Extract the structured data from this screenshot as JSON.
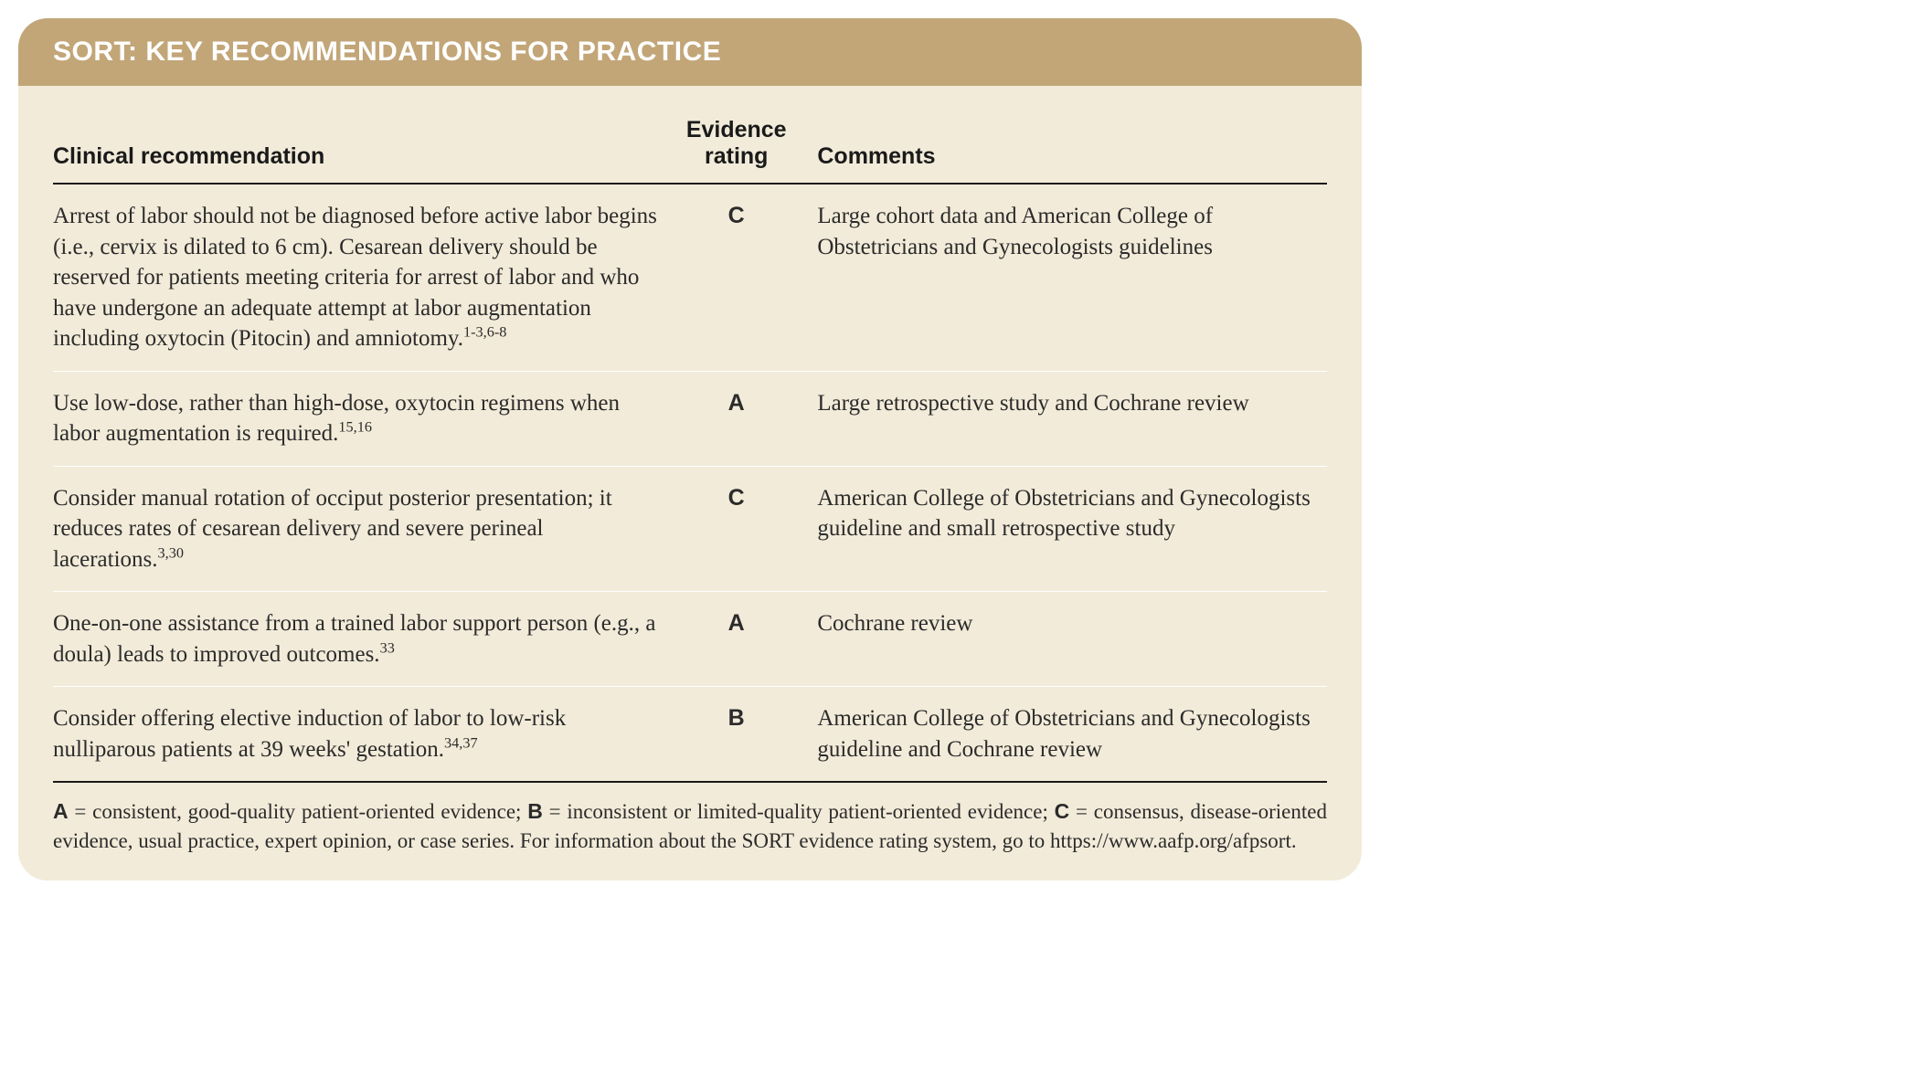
{
  "header": {
    "title": "SORT: KEY RECOMMENDATIONS FOR PRACTICE"
  },
  "columns": {
    "recommendation": "Clinical recommendation",
    "rating": "Evidence rating",
    "comments": "Comments"
  },
  "rows": [
    {
      "recommendation": "Arrest of labor should not be diagnosed before active labor begins (i.e., cervix is dilated to 6 cm). Cesarean delivery should be reserved for patients meeting criteria for arrest of labor and who have undergone an adequate attempt at labor augmentation including oxytocin (Pitocin) and amniotomy.",
      "refs": "1-3,6-8",
      "rating": "C",
      "comments": "Large cohort data and American College of Obstetricians and Gynecologists guidelines"
    },
    {
      "recommendation": "Use low-dose, rather than high-dose, oxytocin regimens when labor augmentation is required.",
      "refs": "15,16",
      "rating": "A",
      "comments": "Large retrospective study and Cochrane review"
    },
    {
      "recommendation": "Consider manual rotation of occiput posterior presentation; it reduces rates of cesarean delivery and severe perineal lacerations.",
      "refs": "3,30",
      "rating": "C",
      "comments": "American College of Obstetricians and Gynecologists guideline and small retrospective study"
    },
    {
      "recommendation": "One-on-one assistance from a trained labor support person (e.g., a doula) leads to improved outcomes.",
      "refs": "33",
      "rating": "A",
      "comments": "Cochrane review"
    },
    {
      "recommendation": "Consider offering elective induction of labor to low-risk nulliparous patients at 39 weeks' gestation.",
      "refs": "34,37",
      "rating": "B",
      "comments": "American College of Obstetricians and Gynecologists guideline and Cochrane review"
    }
  ],
  "legend": {
    "a_label": "A",
    "a_text": " = consistent, good-quality patient-oriented evidence; ",
    "b_label": "B",
    "b_text": " = inconsistent or limited-quality patient-oriented evidence; ",
    "c_label": "C",
    "c_text": " = consensus, disease-oriented evidence, usual practice, expert opinion, or case series. For information about the SORT evidence rating system, go to https://www.aafp.org/afpsort."
  },
  "style": {
    "header_bg": "#c2a678",
    "header_text": "#ffffff",
    "body_bg": "#f2ebd9",
    "text_color": "#2b2b2b",
    "rule_color": "#1a1a1a",
    "row_divider": "#ffffff",
    "corner_radius": 32,
    "header_fontsize": 30,
    "th_fontsize": 25,
    "td_fontsize": 25,
    "legend_fontsize": 23
  }
}
